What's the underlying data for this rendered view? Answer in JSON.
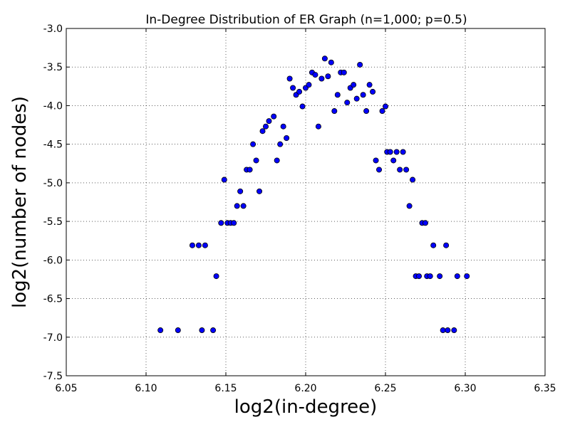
{
  "chart_data": {
    "type": "scatter",
    "title": "In-Degree Distribution of ER Graph (n=1,000; p=0.5)",
    "xlabel": "log2(in-degree)",
    "ylabel": "log2(number of nodes)",
    "xlim": [
      6.05,
      6.35
    ],
    "ylim": [
      -7.5,
      -3.0
    ],
    "x_ticks": [
      "6.05",
      "6.10",
      "6.15",
      "6.20",
      "6.25",
      "6.30",
      "6.35"
    ],
    "y_ticks": [
      "-3.0",
      "-3.5",
      "-4.0",
      "-4.5",
      "-5.0",
      "-5.5",
      "-6.0",
      "-6.5",
      "-7.0",
      "-7.5"
    ],
    "grid": true,
    "marker_color": "#0000ff",
    "marker_edge": "#000000",
    "series": [
      {
        "points": [
          [
            6.109,
            -6.91
          ],
          [
            6.12,
            -6.91
          ],
          [
            6.129,
            -5.81
          ],
          [
            6.133,
            -5.81
          ],
          [
            6.135,
            -6.91
          ],
          [
            6.137,
            -5.81
          ],
          [
            6.142,
            -6.91
          ],
          [
            6.144,
            -6.21
          ],
          [
            6.147,
            -5.52
          ],
          [
            6.149,
            -4.96
          ],
          [
            6.151,
            -5.52
          ],
          [
            6.153,
            -5.52
          ],
          [
            6.155,
            -5.52
          ],
          [
            6.157,
            -5.3
          ],
          [
            6.159,
            -5.11
          ],
          [
            6.161,
            -5.3
          ],
          [
            6.163,
            -4.83
          ],
          [
            6.165,
            -4.83
          ],
          [
            6.167,
            -4.5
          ],
          [
            6.169,
            -4.71
          ],
          [
            6.171,
            -5.11
          ],
          [
            6.173,
            -4.33
          ],
          [
            6.175,
            -4.27
          ],
          [
            6.177,
            -4.2
          ],
          [
            6.18,
            -4.14
          ],
          [
            6.182,
            -4.71
          ],
          [
            6.184,
            -4.5
          ],
          [
            6.186,
            -4.27
          ],
          [
            6.188,
            -4.42
          ],
          [
            6.19,
            -3.65
          ],
          [
            6.192,
            -3.77
          ],
          [
            6.194,
            -3.86
          ],
          [
            6.196,
            -3.82
          ],
          [
            6.198,
            -4.01
          ],
          [
            6.2,
            -3.77
          ],
          [
            6.202,
            -3.73
          ],
          [
            6.204,
            -3.57
          ],
          [
            6.206,
            -3.6
          ],
          [
            6.208,
            -4.27
          ],
          [
            6.21,
            -3.65
          ],
          [
            6.212,
            -3.39
          ],
          [
            6.214,
            -3.62
          ],
          [
            6.216,
            -3.44
          ],
          [
            6.218,
            -4.07
          ],
          [
            6.22,
            -3.86
          ],
          [
            6.222,
            -3.57
          ],
          [
            6.224,
            -3.57
          ],
          [
            6.226,
            -3.96
          ],
          [
            6.228,
            -3.77
          ],
          [
            6.23,
            -3.73
          ],
          [
            6.232,
            -3.91
          ],
          [
            6.234,
            -3.47
          ],
          [
            6.236,
            -3.86
          ],
          [
            6.238,
            -4.07
          ],
          [
            6.24,
            -3.73
          ],
          [
            6.242,
            -3.82
          ],
          [
            6.244,
            -4.71
          ],
          [
            6.246,
            -4.83
          ],
          [
            6.248,
            -4.07
          ],
          [
            6.25,
            -4.01
          ],
          [
            6.251,
            -4.6
          ],
          [
            6.253,
            -4.6
          ],
          [
            6.255,
            -4.71
          ],
          [
            6.257,
            -4.6
          ],
          [
            6.259,
            -4.83
          ],
          [
            6.261,
            -4.6
          ],
          [
            6.263,
            -4.83
          ],
          [
            6.265,
            -5.3
          ],
          [
            6.267,
            -4.96
          ],
          [
            6.269,
            -6.21
          ],
          [
            6.271,
            -6.21
          ],
          [
            6.273,
            -5.52
          ],
          [
            6.275,
            -5.52
          ],
          [
            6.276,
            -6.21
          ],
          [
            6.278,
            -6.21
          ],
          [
            6.28,
            -5.81
          ],
          [
            6.284,
            -6.21
          ],
          [
            6.286,
            -6.91
          ],
          [
            6.288,
            -5.81
          ],
          [
            6.289,
            -6.91
          ],
          [
            6.293,
            -6.91
          ],
          [
            6.295,
            -6.21
          ],
          [
            6.301,
            -6.21
          ]
        ]
      }
    ]
  }
}
